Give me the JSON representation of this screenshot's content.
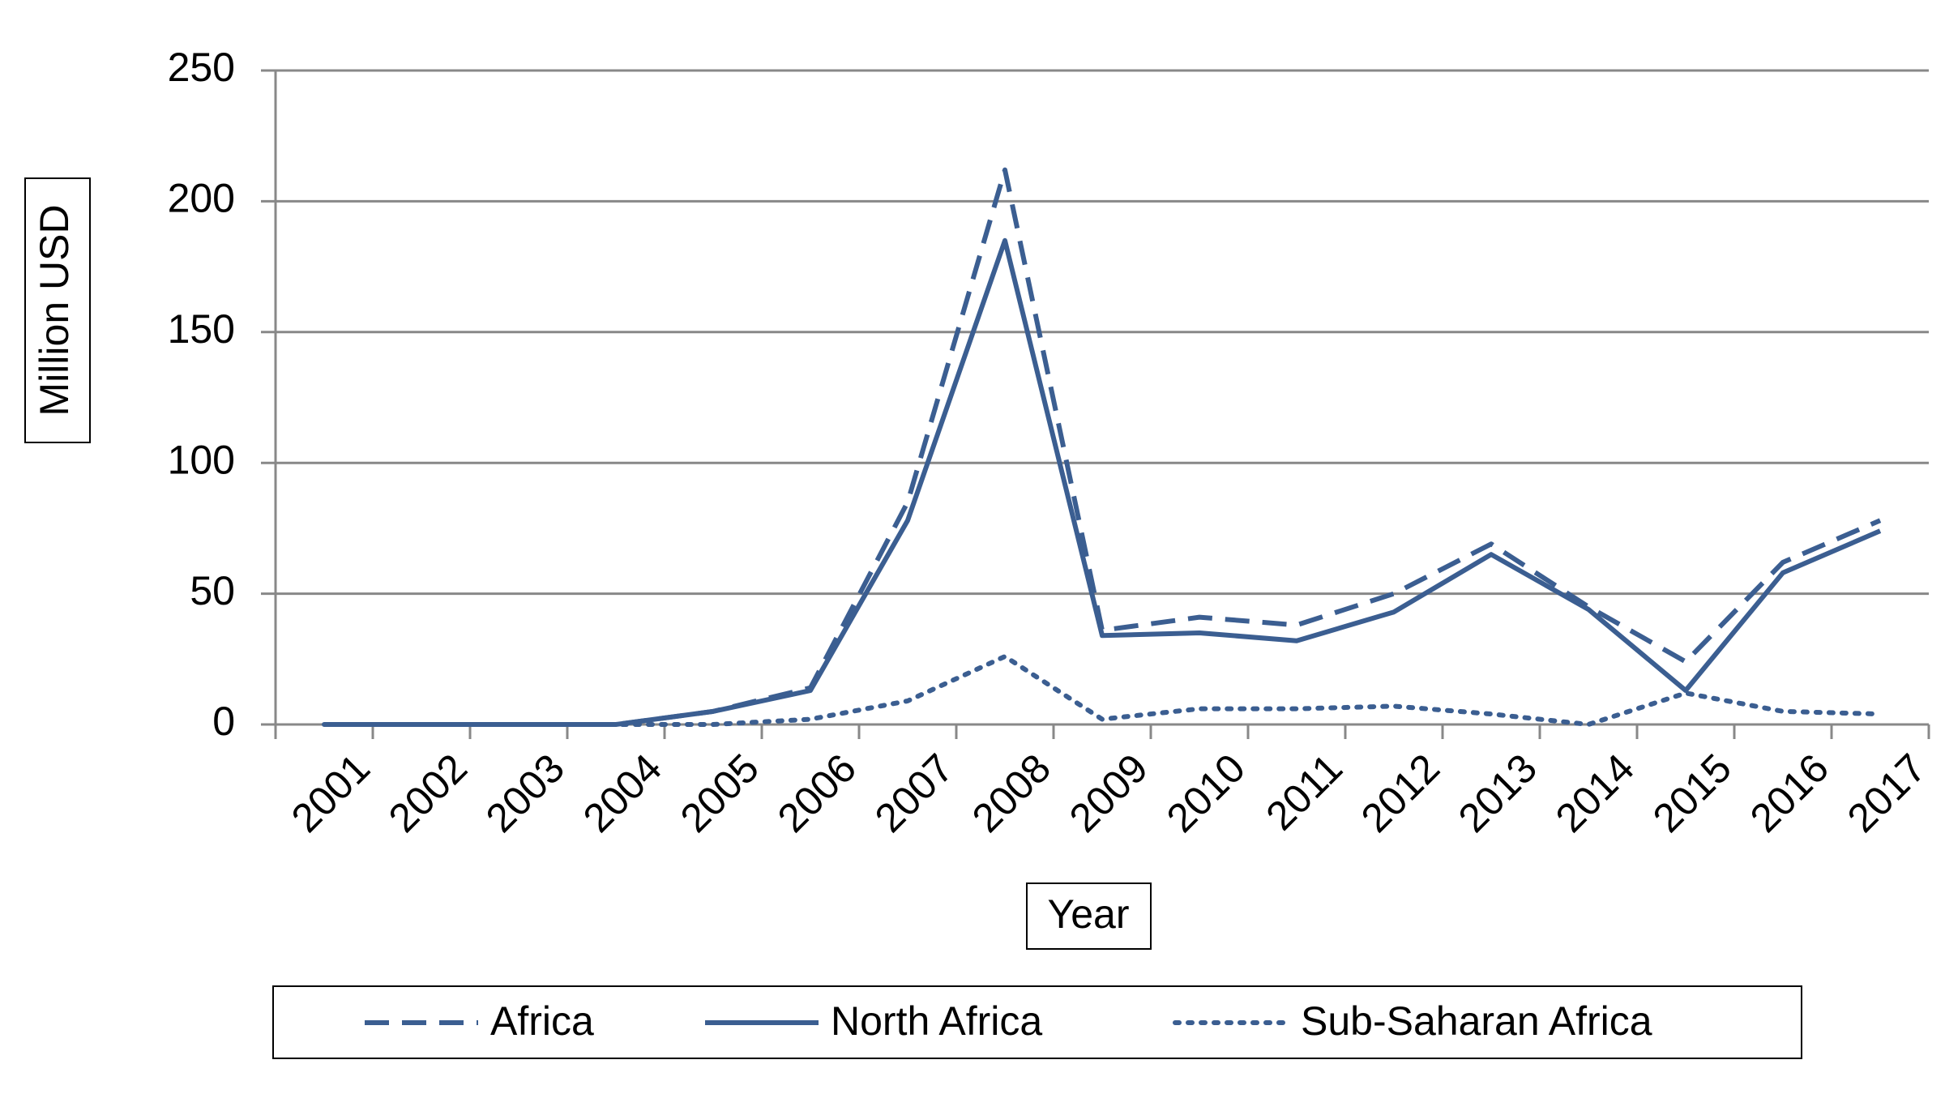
{
  "chart_data": {
    "type": "line",
    "x_label": "Year",
    "y_label": "Million USD",
    "categories": [
      "2001",
      "2002",
      "2003",
      "2004",
      "2005",
      "2006",
      "2007",
      "2008",
      "2009",
      "2010",
      "2011",
      "2012",
      "2013",
      "2014",
      "2015",
      "2016",
      "2017"
    ],
    "series": [
      {
        "name": "Africa",
        "color": "#3b5e91",
        "dash": "dashed",
        "values": [
          0,
          0,
          0,
          0,
          5,
          14,
          85,
          212,
          36,
          41,
          38,
          50,
          69,
          45,
          24,
          62,
          78
        ]
      },
      {
        "name": "North Africa",
        "color": "#3b5e91",
        "dash": "solid",
        "values": [
          0,
          0,
          0,
          0,
          5,
          13,
          78,
          185,
          34,
          35,
          32,
          43,
          65,
          44,
          13,
          58,
          74
        ]
      },
      {
        "name": "Sub-Saharan Africa",
        "color": "#3b5e91",
        "dash": "dotted",
        "values": [
          0,
          0,
          0,
          0,
          0,
          2,
          9,
          26,
          2,
          6,
          6,
          7,
          4,
          0,
          12,
          5,
          4
        ]
      }
    ],
    "ylim": [
      0,
      250
    ],
    "yticks": [
      0,
      50,
      100,
      150,
      200,
      250
    ],
    "grid": true,
    "legend": "bottom"
  }
}
